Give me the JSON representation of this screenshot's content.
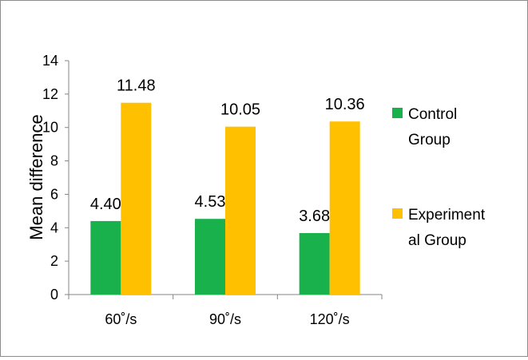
{
  "chart_data": {
    "type": "bar",
    "categories": [
      "60˚/s",
      "90˚/s",
      "120˚/s"
    ],
    "series": [
      {
        "name": "Control Group",
        "values": [
          4.4,
          4.53,
          3.68
        ],
        "labels": [
          "4.40",
          "4.53",
          "3.68"
        ],
        "color": "#18B14B"
      },
      {
        "name": "Experimental Group",
        "values": [
          11.48,
          10.05,
          10.36
        ],
        "labels": [
          "11.48",
          "10.05",
          "10.36"
        ],
        "color": "#FFC000"
      }
    ],
    "title": "",
    "xlabel": "",
    "ylabel": "Mean difference",
    "ylim": [
      0,
      14
    ],
    "yticks": [
      0,
      2,
      4,
      6,
      8,
      10,
      12,
      14
    ],
    "grid": false,
    "legend_position": "right",
    "legend": {
      "items": [
        {
          "lines": [
            "Control",
            "Group"
          ],
          "color": "#18B14B"
        },
        {
          "lines": [
            "Experiment",
            "al Group"
          ],
          "color": "#FFC000"
        }
      ]
    }
  }
}
